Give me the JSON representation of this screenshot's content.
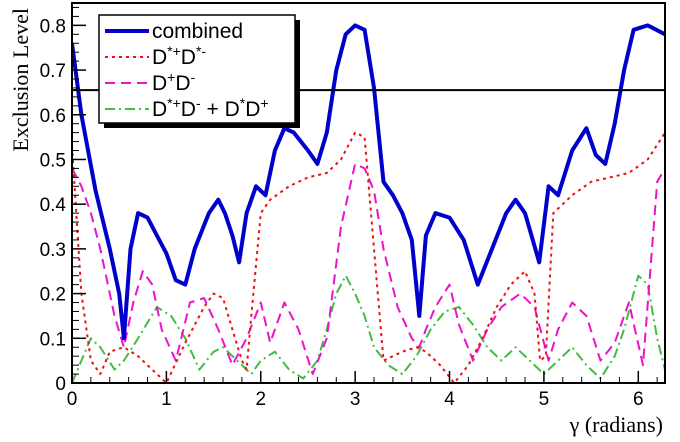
{
  "chart_data": {
    "type": "line",
    "xlabel": "γ (radians)",
    "ylabel": "Exclusion Level",
    "xlim": [
      0,
      6.283
    ],
    "ylim": [
      0,
      0.85
    ],
    "x_ticks": [
      "0",
      "1",
      "2",
      "3",
      "4",
      "5",
      "6"
    ],
    "y_ticks": [
      "0",
      "0.1",
      "0.2",
      "0.3",
      "0.4",
      "0.5",
      "0.6",
      "0.7",
      "0.8"
    ],
    "grid": false,
    "legend_position": "top-left",
    "reference_line": {
      "y": 0.655,
      "color": "#000000"
    },
    "series": [
      {
        "name": "combined",
        "legend_html": "combined",
        "color": "#0000cc",
        "dash": "",
        "width": 4,
        "x": [
          0,
          0.1,
          0.25,
          0.4,
          0.5,
          0.55,
          0.62,
          0.7,
          0.8,
          0.9,
          1.0,
          1.1,
          1.2,
          1.3,
          1.45,
          1.55,
          1.62,
          1.7,
          1.77,
          1.85,
          1.95,
          2.05,
          2.15,
          2.25,
          2.35,
          2.5,
          2.6,
          2.7,
          2.8,
          2.9,
          3.0,
          3.1,
          3.2,
          3.3,
          3.4,
          3.5,
          3.6,
          3.68,
          3.75,
          3.85,
          4.0,
          4.15,
          4.3,
          4.45,
          4.6,
          4.7,
          4.8,
          4.95,
          5.05,
          5.15,
          5.3,
          5.45,
          5.55,
          5.65,
          5.75,
          5.85,
          5.95,
          6.1,
          6.283
        ],
        "y": [
          0.76,
          0.6,
          0.43,
          0.3,
          0.2,
          0.1,
          0.3,
          0.38,
          0.37,
          0.33,
          0.29,
          0.23,
          0.22,
          0.3,
          0.38,
          0.41,
          0.38,
          0.33,
          0.27,
          0.38,
          0.44,
          0.42,
          0.52,
          0.57,
          0.56,
          0.52,
          0.49,
          0.56,
          0.7,
          0.78,
          0.8,
          0.79,
          0.66,
          0.45,
          0.42,
          0.38,
          0.32,
          0.15,
          0.33,
          0.38,
          0.37,
          0.32,
          0.22,
          0.3,
          0.38,
          0.41,
          0.38,
          0.27,
          0.44,
          0.42,
          0.52,
          0.57,
          0.51,
          0.49,
          0.58,
          0.7,
          0.79,
          0.8,
          0.78
        ]
      },
      {
        "name": "D*+D*-",
        "legend_html": "D<tspan dy='-8' font-size='14'>*+</tspan><tspan dy='8'>D</tspan><tspan dy='-8' font-size='14'>*-</tspan>",
        "color": "#ee1111",
        "dash": "3,4",
        "width": 2,
        "x": [
          0,
          0.1,
          0.2,
          0.3,
          0.4,
          0.55,
          0.7,
          0.85,
          1.0,
          1.2,
          1.4,
          1.5,
          1.6,
          1.7,
          1.8,
          1.85,
          1.9,
          2.0,
          2.1,
          2.3,
          2.5,
          2.7,
          2.85,
          3.0,
          3.1,
          3.2,
          3.3,
          3.5,
          3.65,
          3.75,
          3.9,
          4.05,
          4.2,
          4.35,
          4.5,
          4.65,
          4.8,
          4.9,
          4.96,
          5.02,
          5.1,
          5.3,
          5.5,
          5.7,
          5.9,
          6.1,
          6.283
        ],
        "y": [
          0.53,
          0.2,
          0.05,
          0.02,
          0.07,
          0.08,
          0.06,
          0.03,
          0.0,
          0.09,
          0.17,
          0.2,
          0.19,
          0.12,
          0.05,
          0.03,
          0.15,
          0.38,
          0.41,
          0.44,
          0.46,
          0.47,
          0.5,
          0.56,
          0.55,
          0.3,
          0.05,
          0.07,
          0.08,
          0.07,
          0.04,
          0.0,
          0.04,
          0.1,
          0.17,
          0.22,
          0.25,
          0.2,
          0.05,
          0.06,
          0.38,
          0.42,
          0.45,
          0.46,
          0.47,
          0.5,
          0.56
        ]
      },
      {
        "name": "D+D-",
        "legend_html": "D<tspan dy='-8' font-size='14'>+</tspan><tspan dy='8'>D</tspan><tspan dy='-8' font-size='14'>-</tspan>",
        "color": "#ee11cc",
        "dash": "10,6",
        "width": 2,
        "x": [
          0,
          0.1,
          0.2,
          0.3,
          0.45,
          0.55,
          0.65,
          0.75,
          0.85,
          0.95,
          1.1,
          1.25,
          1.4,
          1.55,
          1.7,
          1.85,
          2.0,
          2.1,
          2.25,
          2.4,
          2.55,
          2.7,
          2.85,
          3.0,
          3.1,
          3.2,
          3.3,
          3.45,
          3.6,
          3.68,
          3.75,
          3.85,
          4.0,
          4.1,
          4.25,
          4.4,
          4.55,
          4.75,
          4.9,
          5.05,
          5.15,
          5.3,
          5.45,
          5.6,
          5.75,
          5.9,
          6.05,
          6.2,
          6.283
        ],
        "y": [
          0.48,
          0.44,
          0.38,
          0.3,
          0.15,
          0.08,
          0.18,
          0.25,
          0.22,
          0.12,
          0.05,
          0.18,
          0.19,
          0.12,
          0.04,
          0.1,
          0.18,
          0.09,
          0.18,
          0.12,
          0.02,
          0.1,
          0.35,
          0.49,
          0.48,
          0.43,
          0.3,
          0.17,
          0.1,
          0.08,
          0.12,
          0.17,
          0.22,
          0.13,
          0.05,
          0.12,
          0.17,
          0.2,
          0.17,
          0.05,
          0.12,
          0.18,
          0.15,
          0.05,
          0.09,
          0.18,
          0.04,
          0.45,
          0.48
        ]
      },
      {
        "name": "D*+D- + D*-D+",
        "legend_html": "D<tspan dy='-8' font-size='14'>*+</tspan><tspan dy='8'>D</tspan><tspan dy='-8' font-size='14'>-</tspan><tspan dy='8'> + D</tspan><tspan dy='-8' font-size='14'>*</tspan><tspan dy='8'>D</tspan><tspan dy='-8' font-size='14'>+</tspan>",
        "color": "#44bb44",
        "dash": "10,4,2,4",
        "width": 2,
        "x": [
          0,
          0.1,
          0.2,
          0.3,
          0.45,
          0.55,
          0.7,
          0.9,
          1.05,
          1.2,
          1.35,
          1.5,
          1.6,
          1.75,
          1.9,
          2.0,
          2.15,
          2.3,
          2.45,
          2.6,
          2.7,
          2.8,
          2.9,
          3.0,
          3.1,
          3.2,
          3.35,
          3.5,
          3.65,
          3.8,
          3.95,
          4.1,
          4.25,
          4.4,
          4.55,
          4.7,
          4.85,
          5.0,
          5.15,
          5.3,
          5.45,
          5.6,
          5.75,
          5.85,
          6.0,
          6.1,
          6.2,
          6.283
        ],
        "y": [
          0.0,
          0.05,
          0.1,
          0.08,
          0.03,
          0.05,
          0.1,
          0.17,
          0.15,
          0.1,
          0.03,
          0.07,
          0.08,
          0.05,
          0.02,
          0.05,
          0.07,
          0.03,
          0.01,
          0.05,
          0.12,
          0.2,
          0.24,
          0.2,
          0.15,
          0.08,
          0.04,
          0.02,
          0.06,
          0.12,
          0.16,
          0.17,
          0.13,
          0.08,
          0.05,
          0.08,
          0.05,
          0.02,
          0.05,
          0.08,
          0.04,
          0.01,
          0.06,
          0.12,
          0.24,
          0.22,
          0.1,
          0.03
        ]
      }
    ]
  }
}
